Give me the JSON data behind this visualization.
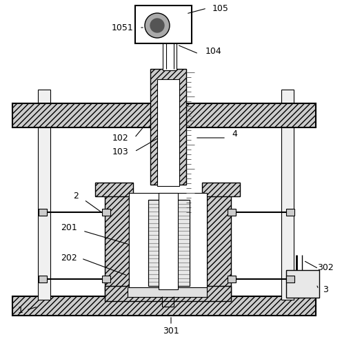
{
  "bg_color": "#ffffff",
  "hatch_gray": "#cccccc",
  "light_gray": "#e8e8e8",
  "white": "#ffffff",
  "mid_gray": "#aaaaaa"
}
